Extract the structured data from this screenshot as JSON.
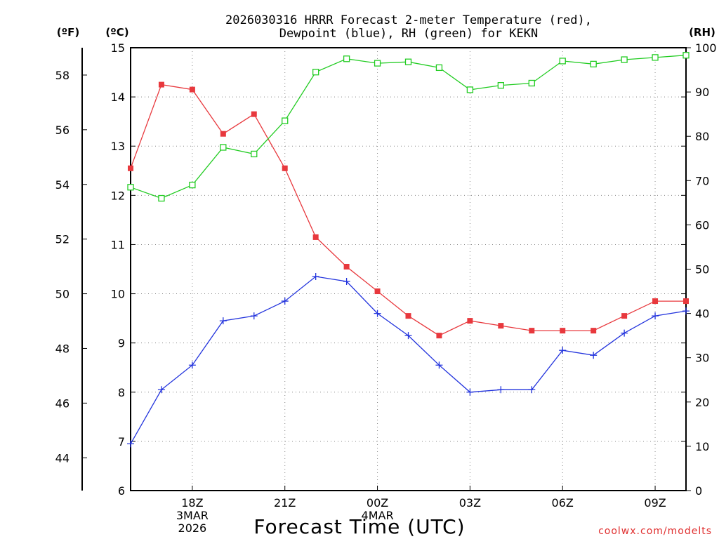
{
  "chart_data": {
    "type": "line",
    "title_line1": "2026030316 HRRR Forecast 2-meter Temperature (red),",
    "title_line2": "Dewpoint (blue), RH (green) for KEKN",
    "xlabel": "Forecast Time (UTC)",
    "credit": "coolwx.com/modelts",
    "units": {
      "fahrenheit": "(ºF)",
      "celsius": "(ºC)",
      "rh": "(RH)"
    },
    "x_hours": [
      0,
      1,
      2,
      3,
      4,
      5,
      6,
      7,
      8,
      9,
      10,
      11,
      12,
      13,
      14,
      15,
      16,
      17,
      18
    ],
    "x_ticks": [
      {
        "hour": 2,
        "lines": [
          "18Z",
          "3MAR",
          "2026"
        ]
      },
      {
        "hour": 5,
        "lines": [
          "21Z"
        ]
      },
      {
        "hour": 8,
        "lines": [
          "00Z",
          "4MAR"
        ]
      },
      {
        "hour": 11,
        "lines": [
          "03Z"
        ]
      },
      {
        "hour": 14,
        "lines": [
          "06Z"
        ]
      },
      {
        "hour": 17,
        "lines": [
          "09Z"
        ]
      }
    ],
    "left_axis_c": {
      "min": 6,
      "max": 15,
      "ticks": [
        6,
        7,
        8,
        9,
        10,
        11,
        12,
        13,
        14,
        15
      ]
    },
    "left_axis_f": {
      "ticks": [
        44,
        46,
        48,
        50,
        52,
        54,
        56,
        58
      ]
    },
    "right_axis_rh": {
      "min": 0,
      "max": 100,
      "ticks": [
        0,
        10,
        20,
        30,
        40,
        50,
        60,
        70,
        80,
        90,
        100
      ]
    },
    "series": [
      {
        "name": "Temperature (°C)",
        "axis": "c",
        "color": "#e8383d",
        "marker": "filled-square",
        "values": [
          12.55,
          14.25,
          14.15,
          13.25,
          13.65,
          12.55,
          11.15,
          10.55,
          10.05,
          9.55,
          9.15,
          9.45,
          9.35,
          9.25,
          9.25,
          9.25,
          9.55,
          9.85,
          9.85
        ]
      },
      {
        "name": "Dewpoint (°C)",
        "axis": "c",
        "color": "#2233dd",
        "marker": "plus",
        "values": [
          6.95,
          8.05,
          8.55,
          9.45,
          9.55,
          9.85,
          10.35,
          10.25,
          9.6,
          9.15,
          8.55,
          8.0,
          8.05,
          8.05,
          8.85,
          8.75,
          9.2,
          9.55,
          9.65
        ]
      },
      {
        "name": "RH (%)",
        "axis": "rh",
        "color": "#22cc22",
        "marker": "open-square",
        "values": [
          68.5,
          66,
          69,
          77.5,
          76,
          83.5,
          94.5,
          97.5,
          96.5,
          96.8,
          95.5,
          90.5,
          91.5,
          92,
          97,
          96.3,
          97.3,
          97.8,
          98.3
        ]
      }
    ]
  }
}
